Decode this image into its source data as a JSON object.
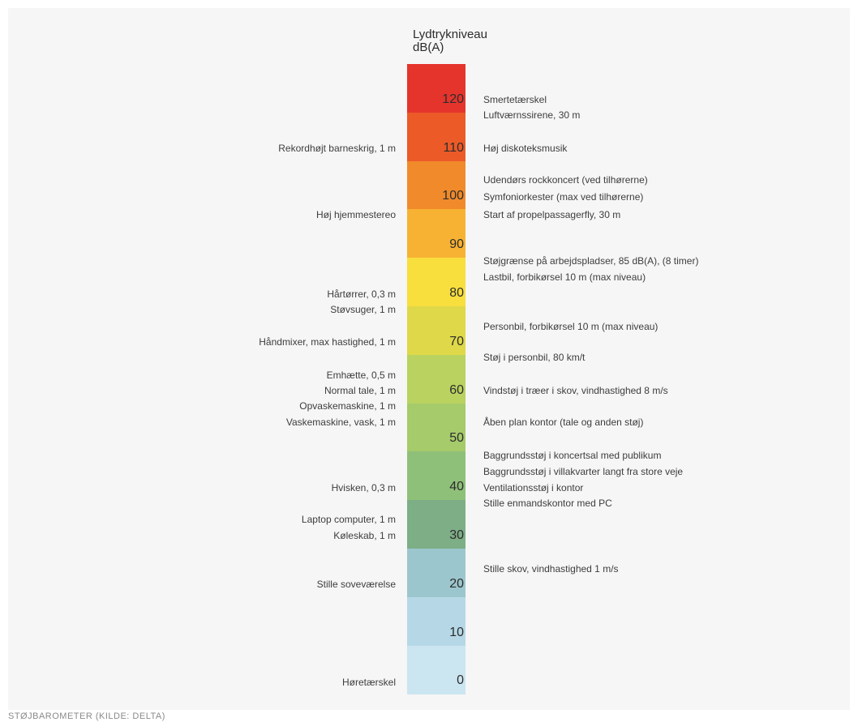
{
  "header": {
    "line1": "Lydtrykniveau",
    "line2": "dB(A)"
  },
  "scale": [
    {
      "value": "120",
      "color": "#e5342c"
    },
    {
      "value": "110",
      "color": "#ec5a28"
    },
    {
      "value": "100",
      "color": "#f08a2a"
    },
    {
      "value": "90",
      "color": "#f7b233"
    },
    {
      "value": "80",
      "color": "#f8df3e"
    },
    {
      "value": "70",
      "color": "#dfd848"
    },
    {
      "value": "60",
      "color": "#b9d260"
    },
    {
      "value": "50",
      "color": "#a5cb6a"
    },
    {
      "value": "40",
      "color": "#8fc079"
    },
    {
      "value": "30",
      "color": "#7dae86"
    },
    {
      "value": "20",
      "color": "#9cc6cd"
    },
    {
      "value": "10",
      "color": "#b6d8e6"
    },
    {
      "value": "0",
      "color": "#cbe5f1"
    }
  ],
  "left_labels": [
    "Rekordhøjt barneskrig, 1 m",
    "Høj hjemmestereo",
    "Hårtørrer, 0,3 m",
    "Støvsuger, 1 m",
    "Håndmixer, max hastighed, 1 m",
    "Emhætte, 0,5 m",
    "Normal tale, 1 m",
    "Opvaskemaskine, 1 m",
    "Vaskemaskine, vask, 1 m",
    "Hvisken, 0,3 m",
    "Laptop computer, 1 m",
    "Køleskab, 1 m",
    "Stille soveværelse",
    "Høretærskel"
  ],
  "right_labels": [
    "Smertetærskel",
    "Luftværnssirene, 30 m",
    "Høj diskoteksmusik",
    "Udendørs rockkoncert (ved tilhørerne)",
    "Symfoniorkester (max ved tilhørerne)",
    "Start af propelpassagerfly, 30 m",
    "Støjgrænse på arbejdspladser, 85 dB(A), (8 timer)",
    "Lastbil, forbikørsel 10 m (max niveau)",
    "Personbil, forbikørsel 10 m (max niveau)",
    "Støj i personbil, 80 km/t",
    "Vindstøj i træer i skov, vindhastighed 8 m/s",
    "Åben plan kontor (tale og anden støj)",
    "Baggrundsstøj i koncertsal med publikum",
    "Baggrundsstøj i villakvarter langt fra store veje",
    "Ventilationsstøj i kontor",
    "Stille enmandskontor med PC",
    "Stille skov, vindhastighed 1 m/s"
  ],
  "footer": "STØJBAROMETER (KILDE: DELTA)"
}
